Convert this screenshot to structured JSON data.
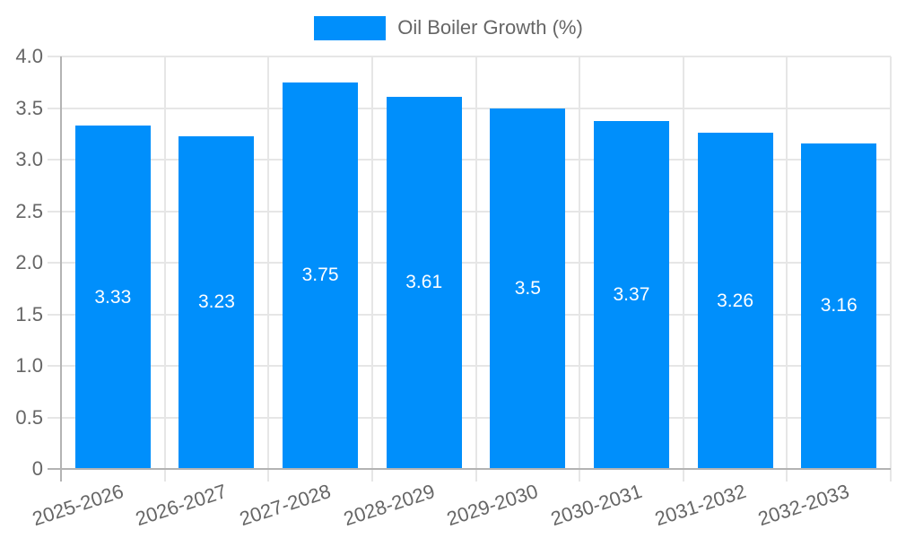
{
  "chart_data": {
    "type": "bar",
    "title": "",
    "legend": {
      "position": "top",
      "label": "Oil Boiler Growth (%)"
    },
    "categories": [
      "2025-2026",
      "2026-2027",
      "2027-2028",
      "2028-2029",
      "2029-2030",
      "2030-2031",
      "2031-2032",
      "2032-2033"
    ],
    "series": [
      {
        "name": "Oil Boiler Growth (%)",
        "values": [
          3.33,
          3.23,
          3.75,
          3.61,
          3.5,
          3.37,
          3.26,
          3.16
        ],
        "color": "#008FFB"
      }
    ],
    "value_labels": [
      "3.33",
      "3.23",
      "3.75",
      "3.61",
      "3.5",
      "3.37",
      "3.26",
      "3.16"
    ],
    "xlabel": "",
    "ylabel": "",
    "ylim": [
      0,
      4
    ],
    "yticks": [
      "4.0",
      "3.5",
      "3.0",
      "2.5",
      "2.0",
      "1.5",
      "1.0",
      "0.5",
      "0"
    ],
    "grid": true,
    "x_label_rotation_deg": -18
  },
  "colors": {
    "bar": "#008FFB",
    "grid": "#e6e6e6",
    "axis": "#b3b3b3",
    "tick_text": "#666666",
    "legend_text": "#666666",
    "value_text": "#ffffff",
    "background": "#ffffff"
  }
}
